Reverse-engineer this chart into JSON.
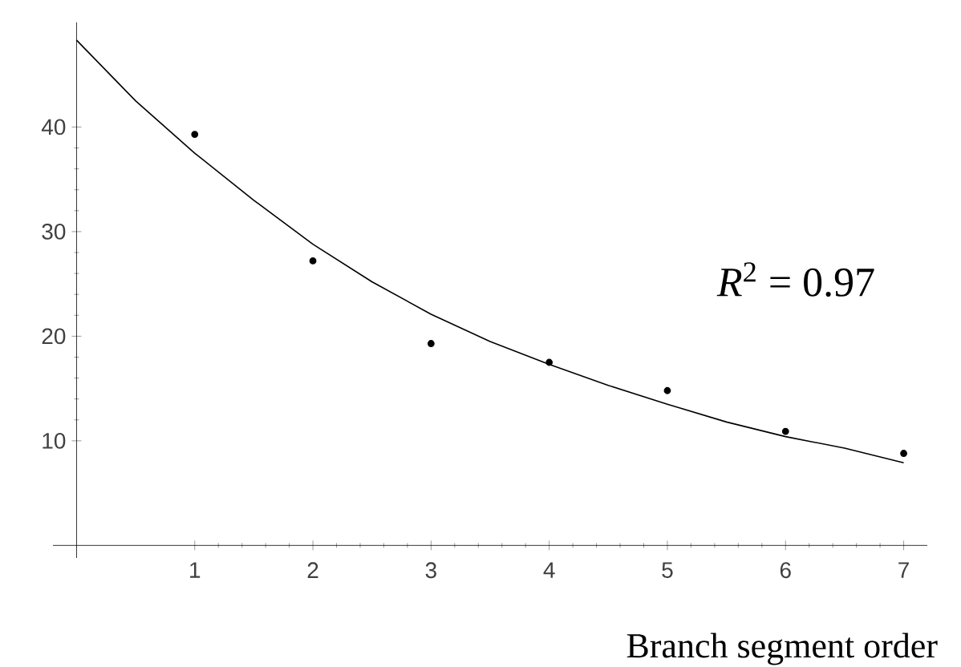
{
  "chart_data": {
    "type": "scatter",
    "xlabel": "Branch segment order",
    "xlim": [
      -0.2,
      7.2
    ],
    "ylim": [
      -1.2,
      50
    ],
    "xticks": [
      1,
      2,
      3,
      4,
      5,
      6,
      7
    ],
    "yticks": [
      10,
      20,
      30,
      40
    ],
    "grid": false,
    "marker": "circle",
    "annotations": [
      "*R*$^{2}$ = 0.97"
    ],
    "series": [
      {
        "color": "#000000",
        "x": [
          1,
          2,
          3,
          4,
          5,
          6,
          7
        ],
        "values": [
          39.3,
          27.2,
          19.3,
          17.5,
          14.8,
          10.9,
          8.8
        ]
      },
      {
        "type": "line",
        "color": "#000000",
        "marker": "none",
        "x": [
          0,
          0.5,
          1,
          1.5,
          2,
          2.5,
          3,
          3.5,
          4,
          4.5,
          5,
          5.5,
          6,
          6.5,
          7
        ],
        "values": [
          48.3,
          42.5,
          37.5,
          33,
          28.8,
          25.2,
          22.1,
          19.5,
          17.3,
          15.3,
          13.5,
          11.8,
          10.4,
          9.3,
          7.9
        ]
      }
    ]
  }
}
